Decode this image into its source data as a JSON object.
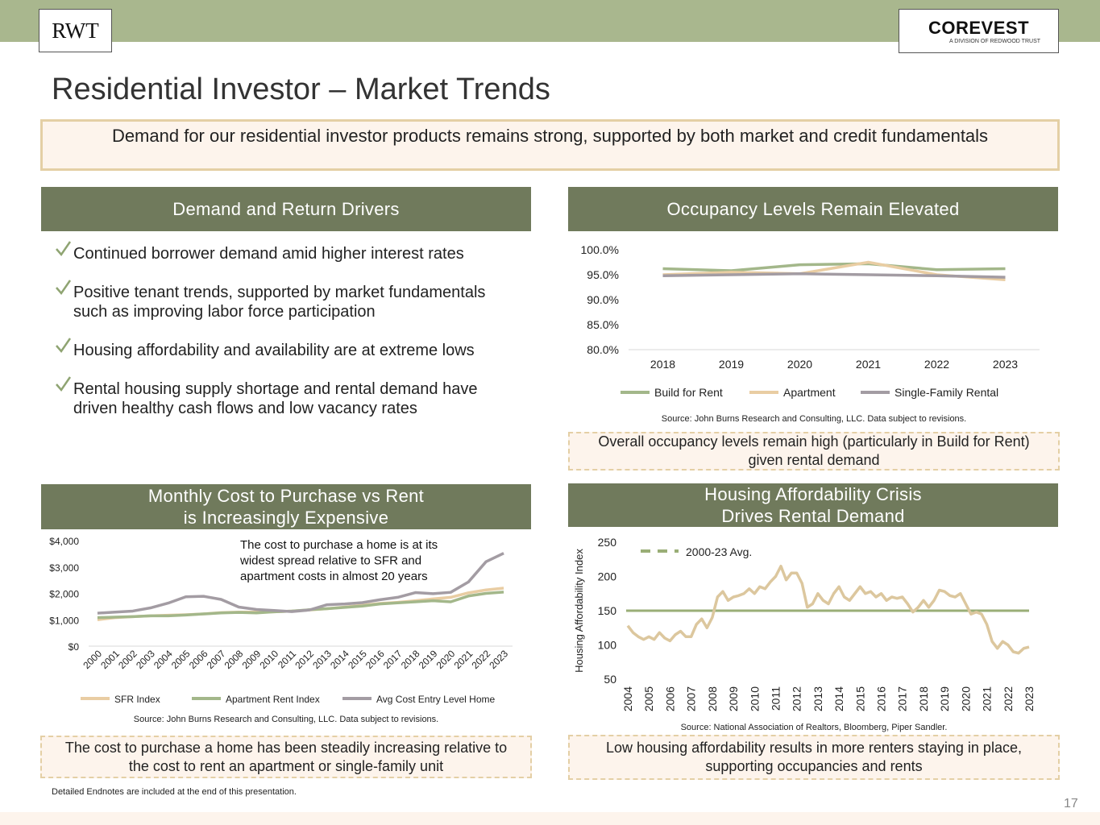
{
  "logo_left": "RWT",
  "logo_right": "COREVEST",
  "logo_right_tagline": "A DIVISION OF REDWOOD TRUST",
  "title": "Residential Investor – Market Trends",
  "banner": "Demand for our residential investor products remains strong, supported by both market and credit fundamentals",
  "panels": [
    {
      "heading_lines": [
        "Demand and Return Drivers"
      ],
      "bullets": [
        [
          "Continued borrower demand amid higher interest rates"
        ],
        [
          "Positive tenant trends, supported by market fundamentals",
          "such as improving labor force participation"
        ],
        [
          "Housing affordability and availability are at extreme lows"
        ],
        [
          "Rental housing supply shortage and rental demand have",
          "driven healthy cash flows and low vacancy rates"
        ]
      ]
    },
    {
      "heading_lines": [
        "Occupancy Levels Remain Elevated"
      ],
      "source": "Source: John Burns Research and Consulting, LLC. Data subject to revisions.",
      "callout_lines": [
        "Overall occupancy levels remain high (particularly in Build for Rent)",
        "given rental demand"
      ]
    },
    {
      "heading_lines": [
        "Monthly Cost to Purchase vs Rent",
        "is Increasingly Expensive"
      ],
      "source": "Source: John Burns Research and Consulting, LLC. Data subject to revisions.",
      "callout_lines": [
        "The cost to purchase a home has been steadily increasing relative to",
        "the cost to rent an apartment or single-family unit"
      ]
    },
    {
      "heading_lines": [
        "Housing Affordability Crisis",
        "Drives Rental Demand"
      ],
      "source": "Source: National Association of Realtors, Bloomberg, Piper Sandler.",
      "callout_lines": [
        "Low housing affordability results in more renters staying in place,",
        "supporting occupancies and rents"
      ]
    }
  ],
  "footnote": "Detailed Endnotes are included at the end of this presentation.",
  "page_number": 17,
  "chart_data": [
    {
      "type": "line",
      "categories": [
        "2018",
        "2019",
        "2020",
        "2021",
        "2022",
        "2023"
      ],
      "ylim": [
        80,
        100
      ],
      "yticks": [
        {
          "value": 80,
          "label": "80.0%"
        },
        {
          "value": 85,
          "label": "85.0%"
        },
        {
          "value": 90,
          "label": "90.0%"
        },
        {
          "value": 95,
          "label": "95.0%"
        },
        {
          "value": 100,
          "label": "100.0%"
        }
      ],
      "legend": "bottom",
      "grid": false,
      "series": [
        {
          "name": "Build for Rent",
          "color": "#a3b78a",
          "values": [
            96.2,
            95.8,
            97.0,
            97.2,
            96.0,
            96.2
          ]
        },
        {
          "name": "Apartment",
          "color": "#e9cda3",
          "values": [
            95.0,
            95.5,
            95.2,
            97.5,
            95.0,
            94.0
          ]
        },
        {
          "name": "Single-Family Rental",
          "color": "#a39ca3",
          "values": [
            94.8,
            95.0,
            95.2,
            95.0,
            94.8,
            94.5
          ]
        }
      ]
    },
    {
      "type": "line",
      "categories": [
        "2000",
        "2001",
        "2002",
        "2003",
        "2004",
        "2005",
        "2006",
        "2007",
        "2008",
        "2009",
        "2010",
        "2011",
        "2012",
        "2013",
        "2014",
        "2015",
        "2016",
        "2017",
        "2018",
        "2019",
        "2020",
        "2021",
        "2022",
        "2023"
      ],
      "ylim": [
        0,
        4000
      ],
      "yticks": [
        {
          "value": 0,
          "label": "$0"
        },
        {
          "value": 1000,
          "label": "$1,000"
        },
        {
          "value": 2000,
          "label": "$2,000"
        },
        {
          "value": 3000,
          "label": "$3,000"
        },
        {
          "value": 4000,
          "label": "$4,000"
        }
      ],
      "legend": "bottom",
      "grid": false,
      "annotation_lines": [
        "The cost to purchase a home is at its",
        "widest spread relative to SFR and",
        "apartment costs in almost 20 years"
      ],
      "series": [
        {
          "name": "SFR Index",
          "color": "#e9cda3",
          "values": [
            1000,
            1080,
            1120,
            1150,
            1170,
            1190,
            1220,
            1270,
            1290,
            1290,
            1300,
            1330,
            1370,
            1420,
            1480,
            1550,
            1620,
            1660,
            1720,
            1790,
            1850,
            2020,
            2130,
            2200
          ]
        },
        {
          "name": "Apartment Rent Index",
          "color": "#a3b78a",
          "values": [
            1080,
            1100,
            1120,
            1150,
            1150,
            1180,
            1220,
            1260,
            1280,
            1260,
            1300,
            1330,
            1380,
            1420,
            1470,
            1520,
            1600,
            1640,
            1680,
            1720,
            1680,
            1900,
            2000,
            2050
          ]
        },
        {
          "name": "Avg Cost Entry Level Home",
          "color": "#a39ca3",
          "values": [
            1250,
            1290,
            1330,
            1450,
            1630,
            1870,
            1890,
            1770,
            1480,
            1390,
            1350,
            1310,
            1370,
            1570,
            1600,
            1650,
            1760,
            1850,
            2030,
            1990,
            2040,
            2430,
            3200,
            3520
          ]
        }
      ]
    },
    {
      "type": "line",
      "ylabel": "Housing Affordability Index",
      "xlim": [
        2004,
        2023
      ],
      "xticks": [
        2004,
        2005,
        2006,
        2007,
        2008,
        2009,
        2010,
        2011,
        2012,
        2013,
        2014,
        2015,
        2016,
        2017,
        2018,
        2019,
        2020,
        2021,
        2022,
        2023
      ],
      "ylim": [
        50,
        250
      ],
      "yticks": [
        50,
        100,
        150,
        200,
        250
      ],
      "grid": false,
      "legend": "top-left",
      "x": [
        2004,
        2004.25,
        2004.5,
        2004.75,
        2005,
        2005.25,
        2005.5,
        2005.75,
        2006,
        2006.25,
        2006.5,
        2006.75,
        2007,
        2007.25,
        2007.5,
        2007.75,
        2008,
        2008.25,
        2008.5,
        2008.75,
        2009,
        2009.25,
        2009.5,
        2009.75,
        2010,
        2010.25,
        2010.5,
        2010.75,
        2011,
        2011.25,
        2011.5,
        2011.75,
        2012,
        2012.25,
        2012.5,
        2012.75,
        2013,
        2013.25,
        2013.5,
        2013.75,
        2014,
        2014.25,
        2014.5,
        2014.75,
        2015,
        2015.25,
        2015.5,
        2015.75,
        2016,
        2016.25,
        2016.5,
        2016.75,
        2017,
        2017.25,
        2017.5,
        2017.75,
        2018,
        2018.25,
        2018.5,
        2018.75,
        2019,
        2019.25,
        2019.5,
        2019.75,
        2020,
        2020.25,
        2020.5,
        2020.75,
        2021,
        2021.25,
        2021.5,
        2021.75,
        2022,
        2022.25,
        2022.5,
        2022.75,
        2023
      ],
      "series": [
        {
          "color": "#dcc79e",
          "values": [
            128,
            118,
            112,
            108,
            112,
            108,
            118,
            110,
            106,
            115,
            120,
            112,
            112,
            130,
            138,
            125,
            140,
            170,
            178,
            165,
            170,
            172,
            175,
            182,
            175,
            185,
            182,
            192,
            200,
            215,
            195,
            205,
            205,
            190,
            155,
            160,
            175,
            165,
            160,
            175,
            185,
            170,
            165,
            175,
            185,
            175,
            178,
            170,
            175,
            165,
            170,
            168,
            170,
            160,
            148,
            155,
            165,
            155,
            165,
            180,
            178,
            172,
            170,
            175,
            160,
            145,
            148,
            145,
            130,
            105,
            95,
            105,
            100,
            90,
            88,
            95,
            97
          ]
        }
      ],
      "reference_line": {
        "name": "2000-23 Avg.",
        "value": 150,
        "color": "#9aae77"
      }
    }
  ]
}
